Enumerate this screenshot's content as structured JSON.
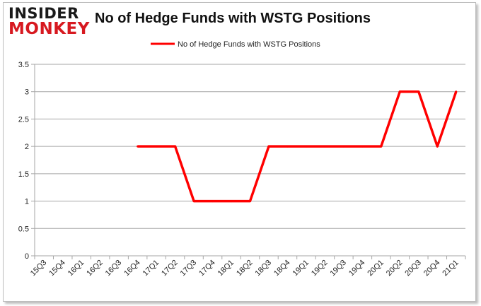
{
  "header": {
    "logo_line1": "INSIDER",
    "logo_line2": "MONKEY"
  },
  "chart_data": {
    "type": "line",
    "title": "No of Hedge Funds with WSTG Positions",
    "xlabel": "",
    "ylabel": "",
    "categories": [
      "15Q3",
      "15Q4",
      "16Q1",
      "16Q2",
      "16Q3",
      "16Q4",
      "17Q1",
      "17Q2",
      "17Q3",
      "17Q4",
      "18Q1",
      "18Q2",
      "18Q3",
      "18Q4",
      "19Q1",
      "19Q2",
      "19Q3",
      "19Q4",
      "20Q1",
      "20Q2",
      "20Q3",
      "20Q4",
      "21Q1"
    ],
    "series": [
      {
        "name": "No of Hedge Funds with WSTG Positions",
        "color": "#ff0000",
        "values": [
          null,
          null,
          null,
          null,
          null,
          2,
          2,
          2,
          1,
          1,
          1,
          1,
          2,
          2,
          2,
          2,
          2,
          2,
          2,
          3,
          3,
          2,
          3
        ]
      }
    ],
    "yticks": [
      "0",
      "0.5",
      "1",
      "1.5",
      "2",
      "2.5",
      "3",
      "3.5"
    ],
    "ylim": [
      0,
      3.5
    ],
    "grid": true,
    "legend_position": "top-center"
  }
}
